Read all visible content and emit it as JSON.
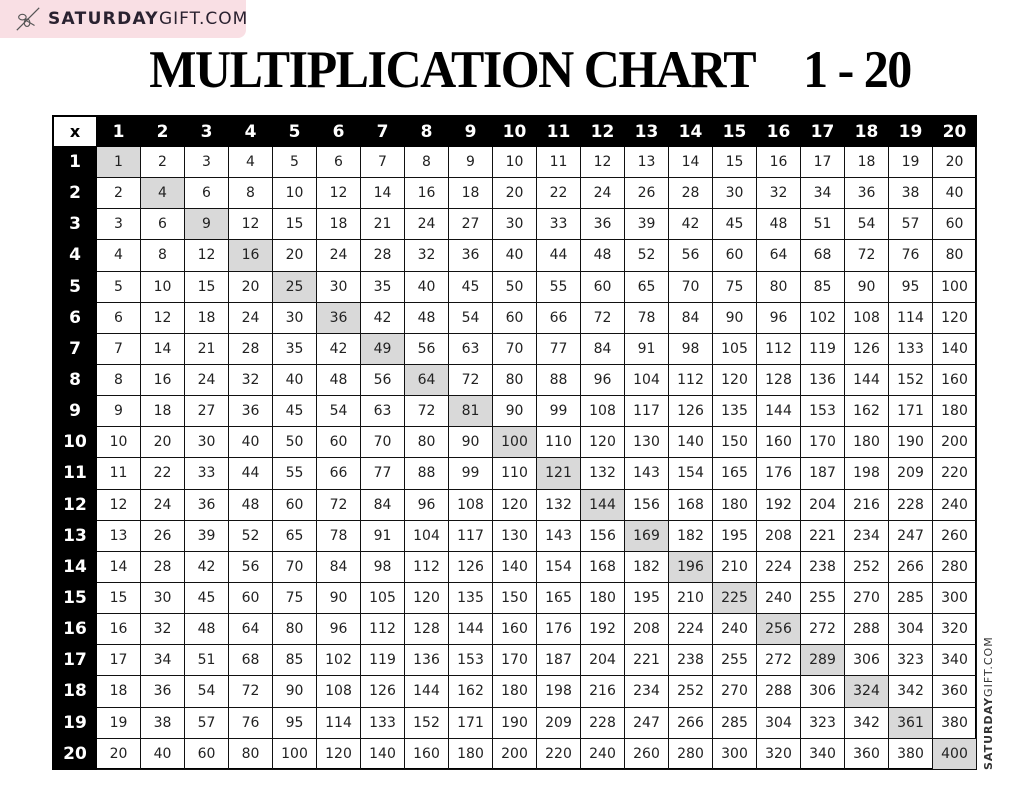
{
  "title": {
    "text": "MULTIPLICATION CHART",
    "range": "1 - 20"
  },
  "corner_label": "x",
  "column_headers": [
    1,
    2,
    3,
    4,
    5,
    6,
    7,
    8,
    9,
    10,
    11,
    12,
    13,
    14,
    15,
    16,
    17,
    18,
    19,
    20
  ],
  "row_headers": [
    1,
    2,
    3,
    4,
    5,
    6,
    7,
    8,
    9,
    10,
    11,
    12,
    13,
    14,
    15,
    16,
    17,
    18,
    19,
    20
  ],
  "rows": [
    [
      1,
      2,
      3,
      4,
      5,
      6,
      7,
      8,
      9,
      10,
      11,
      12,
      13,
      14,
      15,
      16,
      17,
      18,
      19,
      20
    ],
    [
      2,
      4,
      6,
      8,
      10,
      12,
      14,
      16,
      18,
      20,
      22,
      24,
      26,
      28,
      30,
      32,
      34,
      36,
      38,
      40
    ],
    [
      3,
      6,
      9,
      12,
      15,
      18,
      21,
      24,
      27,
      30,
      33,
      36,
      39,
      42,
      45,
      48,
      51,
      54,
      57,
      60
    ],
    [
      4,
      8,
      12,
      16,
      20,
      24,
      28,
      32,
      36,
      40,
      44,
      48,
      52,
      56,
      60,
      64,
      68,
      72,
      76,
      80
    ],
    [
      5,
      10,
      15,
      20,
      25,
      30,
      35,
      40,
      45,
      50,
      55,
      60,
      65,
      70,
      75,
      80,
      85,
      90,
      95,
      100
    ],
    [
      6,
      12,
      18,
      24,
      30,
      36,
      42,
      48,
      54,
      60,
      66,
      72,
      78,
      84,
      90,
      96,
      102,
      108,
      114,
      120
    ],
    [
      7,
      14,
      21,
      28,
      35,
      42,
      49,
      56,
      63,
      70,
      77,
      84,
      91,
      98,
      105,
      112,
      119,
      126,
      133,
      140
    ],
    [
      8,
      16,
      24,
      32,
      40,
      48,
      56,
      64,
      72,
      80,
      88,
      96,
      104,
      112,
      120,
      128,
      136,
      144,
      152,
      160
    ],
    [
      9,
      18,
      27,
      36,
      45,
      54,
      63,
      72,
      81,
      90,
      99,
      108,
      117,
      126,
      135,
      144,
      153,
      162,
      171,
      180
    ],
    [
      10,
      20,
      30,
      40,
      50,
      60,
      70,
      80,
      90,
      100,
      110,
      120,
      130,
      140,
      150,
      160,
      170,
      180,
      190,
      200
    ],
    [
      11,
      22,
      33,
      44,
      55,
      66,
      77,
      88,
      99,
      110,
      121,
      132,
      143,
      154,
      165,
      176,
      187,
      198,
      209,
      220
    ],
    [
      12,
      24,
      36,
      48,
      60,
      72,
      84,
      96,
      108,
      120,
      132,
      144,
      156,
      168,
      180,
      192,
      204,
      216,
      228,
      240
    ],
    [
      13,
      26,
      39,
      52,
      65,
      78,
      91,
      104,
      117,
      130,
      143,
      156,
      169,
      182,
      195,
      208,
      221,
      234,
      247,
      260
    ],
    [
      14,
      28,
      42,
      56,
      70,
      84,
      98,
      112,
      126,
      140,
      154,
      168,
      182,
      196,
      210,
      224,
      238,
      252,
      266,
      280
    ],
    [
      15,
      30,
      45,
      60,
      75,
      90,
      105,
      120,
      135,
      150,
      165,
      180,
      195,
      210,
      225,
      240,
      255,
      270,
      285,
      300
    ],
    [
      16,
      32,
      48,
      64,
      80,
      96,
      112,
      128,
      144,
      160,
      176,
      192,
      208,
      224,
      240,
      256,
      272,
      288,
      304,
      320
    ],
    [
      17,
      34,
      51,
      68,
      85,
      102,
      119,
      136,
      153,
      170,
      187,
      204,
      221,
      238,
      255,
      272,
      289,
      306,
      323,
      340
    ],
    [
      18,
      36,
      54,
      72,
      90,
      108,
      126,
      144,
      162,
      180,
      198,
      216,
      234,
      252,
      270,
      288,
      306,
      324,
      342,
      360
    ],
    [
      19,
      38,
      57,
      76,
      95,
      114,
      133,
      152,
      171,
      190,
      209,
      228,
      247,
      266,
      285,
      304,
      323,
      342,
      361,
      380
    ],
    [
      20,
      40,
      60,
      80,
      100,
      120,
      140,
      160,
      180,
      200,
      220,
      240,
      260,
      280,
      300,
      320,
      340,
      360,
      380,
      400
    ]
  ],
  "highlight_color": "#d9d9d9",
  "watermark": {
    "bold": "SATURDAY",
    "light": "GIFT.COM",
    "icon": "ribbon-scissors-icon",
    "background": "#f9dfe4"
  }
}
